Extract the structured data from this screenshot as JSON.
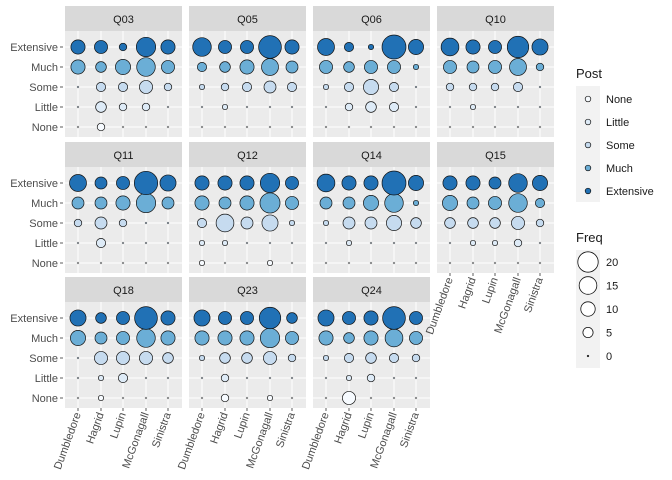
{
  "chart_data": {
    "type": "scatter",
    "subtype": "faceted-bubble",
    "facets": [
      "Q03",
      "Q05",
      "Q06",
      "Q10",
      "Q11",
      "Q12",
      "Q14",
      "Q15",
      "Q18",
      "Q23",
      "Q24"
    ],
    "x_categories": [
      "Dumbledore",
      "Hagrid",
      "Lupin",
      "McGonagall",
      "Sinistra"
    ],
    "y_categories": [
      "None",
      "Little",
      "Some",
      "Much",
      "Extensive"
    ],
    "legend_fill": {
      "title": "Post",
      "entries": [
        "None",
        "Little",
        "Some",
        "Much",
        "Extensive"
      ],
      "colors": [
        "#f7fbff",
        "#deebf7",
        "#c6dbef",
        "#6baed6",
        "#2171b5"
      ]
    },
    "legend_size": {
      "title": "Freq",
      "entries": [
        "20",
        "15",
        "10",
        "5",
        "0"
      ],
      "values": [
        20,
        15,
        10,
        5,
        0
      ]
    },
    "size_max": 20,
    "freq": {
      "Q03": {
        "Extensive": [
          7,
          6,
          2,
          13,
          7
        ],
        "Much": [
          7,
          4,
          8,
          12,
          6
        ],
        "Some": [
          0,
          3,
          3,
          6,
          2
        ],
        "Little": [
          0,
          4,
          2,
          2,
          0
        ],
        "None": [
          0,
          2,
          0,
          0,
          0
        ]
      },
      "Q05": {
        "Extensive": [
          12,
          6,
          6,
          18,
          7
        ],
        "Much": [
          3,
          4,
          7,
          10,
          5
        ],
        "Some": [
          1,
          2,
          3,
          5,
          3
        ],
        "Little": [
          0,
          1,
          0,
          0,
          0
        ],
        "None": [
          0,
          0,
          0,
          0,
          0
        ]
      },
      "Q06": {
        "Extensive": [
          10,
          3,
          1,
          20,
          8
        ],
        "Much": [
          6,
          4,
          6,
          6,
          1
        ],
        "Some": [
          1,
          3,
          8,
          3,
          0
        ],
        "Little": [
          0,
          2,
          4,
          3,
          0
        ],
        "None": [
          0,
          0,
          0,
          0,
          0
        ]
      },
      "Q10": {
        "Extensive": [
          11,
          7,
          6,
          16,
          9
        ],
        "Much": [
          6,
          5,
          6,
          10,
          2
        ],
        "Some": [
          2,
          2,
          2,
          3,
          0
        ],
        "Little": [
          0,
          1,
          0,
          0,
          0
        ],
        "None": [
          0,
          0,
          0,
          0,
          0
        ]
      },
      "Q11": {
        "Extensive": [
          10,
          5,
          6,
          19,
          9
        ],
        "Much": [
          5,
          5,
          7,
          13,
          5
        ],
        "Some": [
          2,
          5,
          2,
          0,
          0
        ],
        "Little": [
          0,
          3,
          0,
          0,
          0
        ],
        "None": [
          0,
          0,
          0,
          0,
          0
        ]
      },
      "Q12": {
        "Extensive": [
          7,
          7,
          7,
          13,
          6
        ],
        "Much": [
          7,
          5,
          7,
          14,
          6
        ],
        "Some": [
          3,
          11,
          5,
          9,
          1
        ],
        "Little": [
          1,
          1,
          0,
          0,
          0
        ],
        "None": [
          1,
          0,
          0,
          1,
          0
        ]
      },
      "Q14": {
        "Extensive": [
          11,
          7,
          7,
          20,
          8
        ],
        "Much": [
          5,
          5,
          8,
          12,
          1
        ],
        "Some": [
          1,
          5,
          5,
          8,
          4
        ],
        "Little": [
          0,
          1,
          0,
          0,
          0
        ],
        "None": [
          0,
          0,
          0,
          0,
          0
        ]
      },
      "Q15": {
        "Extensive": [
          7,
          7,
          5,
          12,
          8
        ],
        "Much": [
          8,
          5,
          6,
          12,
          3
        ],
        "Some": [
          4,
          4,
          4,
          6,
          2
        ],
        "Little": [
          0,
          1,
          1,
          2,
          0
        ],
        "None": [
          0,
          0,
          0,
          0,
          0
        ]
      },
      "Q18": {
        "Extensive": [
          9,
          4,
          6,
          18,
          7
        ],
        "Much": [
          8,
          5,
          6,
          12,
          7
        ],
        "Some": [
          0,
          6,
          6,
          6,
          4
        ],
        "Little": [
          0,
          1,
          3,
          0,
          0
        ],
        "None": [
          0,
          1,
          0,
          0,
          0
        ]
      },
      "Q23": {
        "Extensive": [
          9,
          6,
          6,
          16,
          4
        ],
        "Much": [
          7,
          7,
          7,
          13,
          6
        ],
        "Some": [
          1,
          4,
          4,
          6,
          2
        ],
        "Little": [
          0,
          2,
          0,
          0,
          0
        ],
        "None": [
          0,
          2,
          0,
          1,
          0
        ]
      },
      "Q24": {
        "Extensive": [
          9,
          6,
          7,
          18,
          6
        ],
        "Much": [
          7,
          4,
          7,
          11,
          6
        ],
        "Some": [
          1,
          3,
          4,
          3,
          2
        ],
        "Little": [
          0,
          1,
          2,
          0,
          0
        ],
        "None": [
          0,
          6,
          0,
          0,
          0
        ]
      }
    },
    "grid": true,
    "legend_position": "right"
  }
}
